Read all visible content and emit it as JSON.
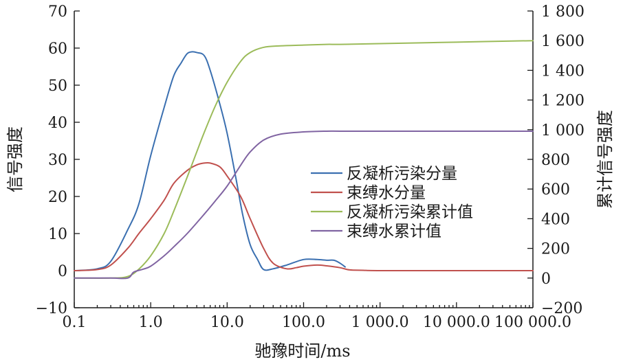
{
  "chart_data": {
    "type": "line",
    "title": "",
    "xlabel": "驰豫时间/ms",
    "ylabel": "信号强度",
    "y2label": "累计信号强度",
    "xscale": "log",
    "xlim": [
      0.1,
      100000
    ],
    "ylim": [
      -10,
      70
    ],
    "y2lim": [
      -200,
      1800
    ],
    "grid": false,
    "legend_position": "center-right",
    "x_ticks": [
      0.1,
      1,
      10,
      100,
      1000,
      10000,
      100000
    ],
    "x_tick_labels": [
      "0.1",
      "1.0",
      "10.0",
      "100.0",
      "1 000.0",
      "10 000.0",
      "100 000.0"
    ],
    "y_ticks": [
      -10,
      0,
      10,
      20,
      30,
      40,
      50,
      60,
      70
    ],
    "y_tick_labels": [
      "−10",
      "0",
      "10",
      "20",
      "30",
      "40",
      "50",
      "60",
      "70"
    ],
    "y2_ticks": [
      -200,
      0,
      200,
      400,
      600,
      800,
      1000,
      1200,
      1400,
      1600,
      1800
    ],
    "y2_tick_labels": [
      "−200",
      "0",
      "200",
      "400",
      "600",
      "800",
      "1 000",
      "1 200",
      "1 400",
      "1 600",
      "1 800"
    ],
    "series": [
      {
        "name": "反凝析污染分量",
        "axis": "left",
        "color": "#3a6fb0",
        "x": [
          0.1,
          0.2,
          0.3,
          0.5,
          0.7,
          1.0,
          1.5,
          2.0,
          2.5,
          3.0,
          3.5,
          4.0,
          5.0,
          6.0,
          8.0,
          10.0,
          13.0,
          16.0,
          20.0,
          25.0,
          30.0,
          40.0,
          60.0,
          100.0,
          150.0,
          200.0,
          250.0,
          300.0,
          350.0
        ],
        "y": [
          0.0,
          0.5,
          2.5,
          11.0,
          18.0,
          31.0,
          44.0,
          52.5,
          56.0,
          58.5,
          59.0,
          58.8,
          58.0,
          54.0,
          45.0,
          37.0,
          25.0,
          15.0,
          7.0,
          3.0,
          0.3,
          0.5,
          1.5,
          3.0,
          3.0,
          2.8,
          2.8,
          2.0,
          1.0
        ]
      },
      {
        "name": "束缚水分量",
        "axis": "left",
        "color": "#c0504d",
        "x": [
          0.1,
          0.2,
          0.3,
          0.5,
          0.7,
          1.0,
          1.5,
          2.0,
          3.0,
          4.0,
          5.0,
          6.0,
          8.0,
          10.0,
          15.0,
          20.0,
          30.0,
          40.0,
          60.0,
          80.0,
          100.0,
          150.0,
          200.0,
          300.0,
          400.0,
          600.0,
          1000.0,
          10000.0,
          100000.0
        ],
        "y": [
          0.0,
          0.3,
          1.5,
          6.0,
          10.0,
          14.0,
          19.0,
          23.5,
          27.0,
          28.5,
          29.0,
          29.0,
          28.0,
          25.5,
          20.0,
          14.0,
          6.0,
          2.0,
          0.5,
          0.8,
          1.2,
          1.5,
          1.3,
          0.8,
          0.2,
          0.1,
          0.0,
          0.0,
          0.0
        ]
      },
      {
        "name": "反凝析污染累计值",
        "axis": "right",
        "color": "#9bbb59",
        "x": [
          0.1,
          0.3,
          0.5,
          0.7,
          1.0,
          1.5,
          2.0,
          3.0,
          4.0,
          5.0,
          7.0,
          10.0,
          15.0,
          20.0,
          30.0,
          50.0,
          100.0,
          200.0,
          300.0,
          1000.0,
          10000.0,
          100000.0
        ],
        "y": [
          0.0,
          0.0,
          10.0,
          60.0,
          150.0,
          300.0,
          450.0,
          680.0,
          850.0,
          980.0,
          1160.0,
          1320.0,
          1460.0,
          1520.0,
          1555.0,
          1565.0,
          1570.0,
          1575.0,
          1575.0,
          1580.0,
          1590.0,
          1600.0
        ]
      },
      {
        "name": "束缚水累计值",
        "axis": "right",
        "color": "#8064a2",
        "x": [
          0.1,
          0.3,
          0.5,
          0.6,
          0.8,
          1.0,
          1.5,
          2.0,
          3.0,
          5.0,
          7.0,
          10.0,
          15.0,
          20.0,
          30.0,
          50.0,
          100.0,
          200.0,
          300.0,
          1000.0,
          10000.0,
          100000.0
        ],
        "y": [
          0.0,
          0.0,
          0.0,
          40.0,
          60.0,
          80.0,
          150.0,
          210.0,
          300.0,
          430.0,
          520.0,
          620.0,
          760.0,
          850.0,
          930.0,
          970.0,
          985.0,
          990.0,
          990.0,
          990.0,
          990.0,
          990.0
        ]
      }
    ]
  }
}
